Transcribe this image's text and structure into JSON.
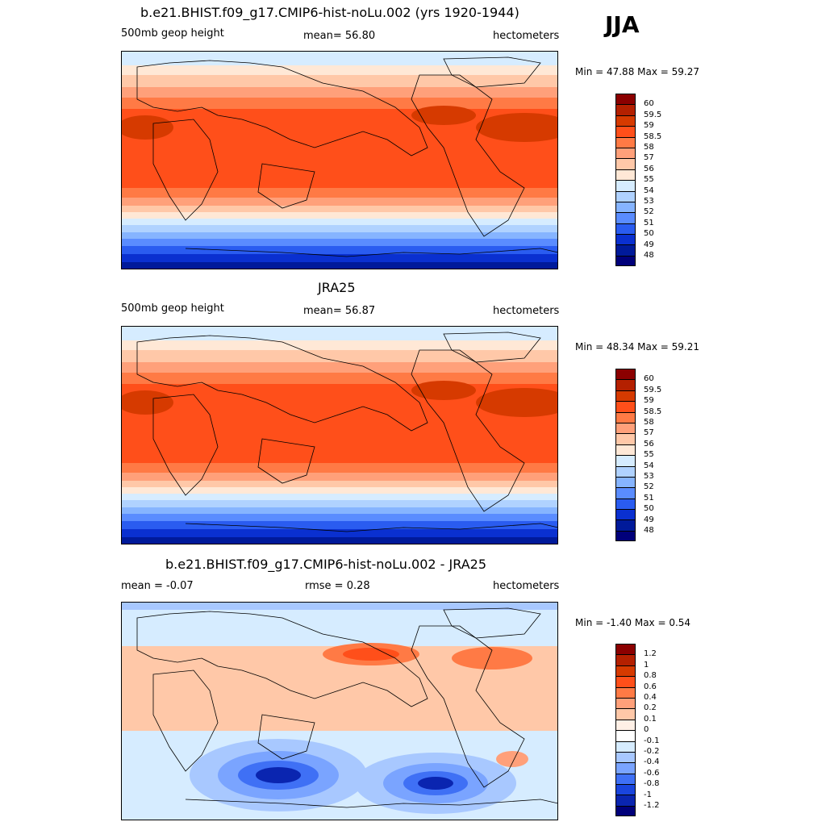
{
  "season": "JJA",
  "panels": [
    {
      "title": "b.e21.BHIST.f09_g17.CMIP6-hist-noLu.002 (yrs 1920-1944)",
      "left": "500mb geop height",
      "center": "mean=  56.80",
      "right": "hectometers",
      "minmax": "Min =  47.88 Max =  59.27",
      "colorbar": {
        "labels": [
          "60",
          "59.5",
          "59",
          "58.5",
          "58",
          "57",
          "56",
          "55",
          "54",
          "53",
          "52",
          "51",
          "50",
          "49",
          "48"
        ],
        "colors": [
          "#8b0000",
          "#b42000",
          "#d63a00",
          "#ff4f1a",
          "#ff7a45",
          "#ffa07a",
          "#ffc8a8",
          "#ffe8d6",
          "#d6ecff",
          "#b0d2ff",
          "#86b4ff",
          "#5a8cff",
          "#2a5cf0",
          "#0a30d0",
          "#001a9a",
          "#00007a"
        ]
      }
    },
    {
      "title": "JRA25",
      "left": "500mb geop height",
      "center": "mean=  56.87",
      "right": "hectometers",
      "minmax": "Min =  48.34 Max =  59.21",
      "colorbar": {
        "labels": [
          "60",
          "59.5",
          "59",
          "58.5",
          "58",
          "57",
          "56",
          "55",
          "54",
          "53",
          "52",
          "51",
          "50",
          "49",
          "48"
        ],
        "colors": [
          "#8b0000",
          "#b42000",
          "#d63a00",
          "#ff4f1a",
          "#ff7a45",
          "#ffa07a",
          "#ffc8a8",
          "#ffe8d6",
          "#d6ecff",
          "#b0d2ff",
          "#86b4ff",
          "#5a8cff",
          "#2a5cf0",
          "#0a30d0",
          "#001a9a",
          "#00007a"
        ]
      }
    },
    {
      "title": "b.e21.BHIST.f09_g17.CMIP6-hist-noLu.002 - JRA25",
      "left": "mean =  -0.07",
      "center": "rmse =   0.28",
      "right": "hectometers",
      "minmax": "Min =  -1.40 Max =   0.54",
      "colorbar": {
        "labels": [
          "1.2",
          "1",
          "0.8",
          "0.6",
          "0.4",
          "0.2",
          "0.1",
          "0",
          "-0.1",
          "-0.2",
          "-0.4",
          "-0.6",
          "-0.8",
          "-1",
          "-1.2"
        ],
        "colors": [
          "#8b0000",
          "#b42000",
          "#d63a00",
          "#ff4f1a",
          "#ff7a45",
          "#ffa07a",
          "#ffc8a8",
          "#fff0e6",
          "#ffffff",
          "#d6ecff",
          "#a8c8ff",
          "#7aa4ff",
          "#3f70f5",
          "#1a45dd",
          "#0a25b0",
          "#00007a"
        ]
      }
    }
  ]
}
